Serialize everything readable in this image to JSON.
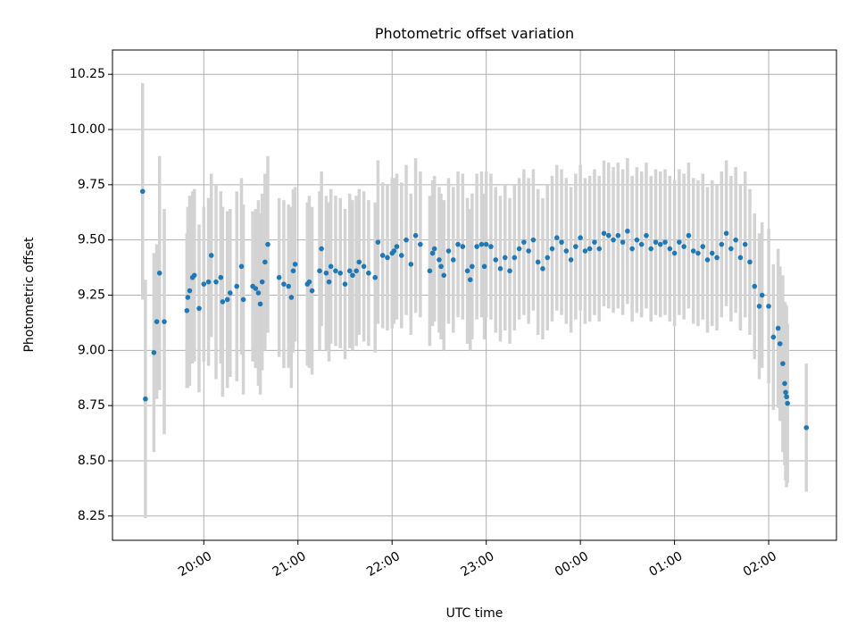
{
  "chart_data": {
    "type": "scatter",
    "title": "Photometric offset variation",
    "xlabel": "UTC time",
    "ylabel": "Photometric offset",
    "grid": true,
    "x_axis": {
      "unit": "hours",
      "range": [
        19.03,
        26.72
      ],
      "ticks": [
        {
          "value": 20,
          "label": "20:00"
        },
        {
          "value": 21,
          "label": "21:00"
        },
        {
          "value": 22,
          "label": "22:00"
        },
        {
          "value": 23,
          "label": "23:00"
        },
        {
          "value": 24,
          "label": "00:00"
        },
        {
          "value": 25,
          "label": "01:00"
        },
        {
          "value": 26,
          "label": "02:00"
        }
      ]
    },
    "y_axis": {
      "range": [
        8.14,
        10.36
      ],
      "ticks": [
        {
          "value": 8.25,
          "label": "8.25"
        },
        {
          "value": 8.5,
          "label": "8.50"
        },
        {
          "value": 8.75,
          "label": "8.75"
        },
        {
          "value": 9.0,
          "label": "9.00"
        },
        {
          "value": 9.25,
          "label": "9.25"
        },
        {
          "value": 9.5,
          "label": "9.50"
        },
        {
          "value": 9.75,
          "label": "9.75"
        },
        {
          "value": 10.0,
          "label": "10.00"
        },
        {
          "value": 10.25,
          "label": "10.25"
        }
      ]
    },
    "colors": {
      "marker": "#1f77b4",
      "errorbar": "#d3d3d3",
      "grid": "#b0b0b0"
    },
    "series": [
      {
        "columns": [
          "x",
          "y",
          "err"
        ],
        "points": [
          [
            19.35,
            9.72,
            0.49
          ],
          [
            19.38,
            8.78,
            0.54
          ],
          [
            19.47,
            8.99,
            0.45
          ],
          [
            19.5,
            9.13,
            0.35
          ],
          [
            19.53,
            9.35,
            0.53
          ],
          [
            19.58,
            9.13,
            0.51
          ],
          [
            19.82,
            9.18,
            0.35
          ],
          [
            19.83,
            9.24,
            0.41
          ],
          [
            19.85,
            9.27,
            0.43
          ],
          [
            19.88,
            9.33,
            0.39
          ],
          [
            19.9,
            9.34,
            0.39
          ],
          [
            19.95,
            9.19,
            0.38
          ],
          [
            20.0,
            9.3,
            0.35
          ],
          [
            20.05,
            9.31,
            0.38
          ],
          [
            20.08,
            9.43,
            0.37
          ],
          [
            20.13,
            9.31,
            0.44
          ],
          [
            20.18,
            9.33,
            0.39
          ],
          [
            20.2,
            9.22,
            0.43
          ],
          [
            20.25,
            9.23,
            0.4
          ],
          [
            20.28,
            9.26,
            0.38
          ],
          [
            20.35,
            9.29,
            0.43
          ],
          [
            20.4,
            9.38,
            0.4
          ],
          [
            20.42,
            9.23,
            0.43
          ],
          [
            20.52,
            9.29,
            0.34
          ],
          [
            20.55,
            9.28,
            0.36
          ],
          [
            20.58,
            9.26,
            0.42
          ],
          [
            20.6,
            9.21,
            0.41
          ],
          [
            20.62,
            9.31,
            0.4
          ],
          [
            20.65,
            9.4,
            0.4
          ],
          [
            20.68,
            9.48,
            0.4
          ],
          [
            20.8,
            9.33,
            0.36
          ],
          [
            20.85,
            9.3,
            0.38
          ],
          [
            20.9,
            9.29,
            0.37
          ],
          [
            20.93,
            9.24,
            0.41
          ],
          [
            20.95,
            9.36,
            0.37
          ],
          [
            20.97,
            9.39,
            0.35
          ],
          [
            21.1,
            9.3,
            0.37
          ],
          [
            21.12,
            9.31,
            0.39
          ],
          [
            21.15,
            9.27,
            0.38
          ],
          [
            21.23,
            9.36,
            0.36
          ],
          [
            21.25,
            9.46,
            0.35
          ],
          [
            21.3,
            9.35,
            0.35
          ],
          [
            21.33,
            9.31,
            0.36
          ],
          [
            21.35,
            9.38,
            0.35
          ],
          [
            21.4,
            9.36,
            0.34
          ],
          [
            21.45,
            9.35,
            0.34
          ],
          [
            21.5,
            9.3,
            0.34
          ],
          [
            21.55,
            9.36,
            0.35
          ],
          [
            21.58,
            9.34,
            0.34
          ],
          [
            21.62,
            9.36,
            0.34
          ],
          [
            21.65,
            9.4,
            0.33
          ],
          [
            21.7,
            9.38,
            0.34
          ],
          [
            21.75,
            9.35,
            0.33
          ],
          [
            21.82,
            9.33,
            0.34
          ],
          [
            21.85,
            9.49,
            0.37
          ],
          [
            21.9,
            9.43,
            0.33
          ],
          [
            21.95,
            9.42,
            0.33
          ],
          [
            22.0,
            9.44,
            0.34
          ],
          [
            22.02,
            9.45,
            0.33
          ],
          [
            22.05,
            9.47,
            0.33
          ],
          [
            22.1,
            9.43,
            0.33
          ],
          [
            22.15,
            9.5,
            0.34
          ],
          [
            22.2,
            9.39,
            0.32
          ],
          [
            22.25,
            9.52,
            0.35
          ],
          [
            22.3,
            9.48,
            0.33
          ],
          [
            22.4,
            9.36,
            0.34
          ],
          [
            22.43,
            9.44,
            0.33
          ],
          [
            22.45,
            9.46,
            0.33
          ],
          [
            22.5,
            9.41,
            0.33
          ],
          [
            22.52,
            9.38,
            0.33
          ],
          [
            22.55,
            9.34,
            0.34
          ],
          [
            22.6,
            9.45,
            0.33
          ],
          [
            22.65,
            9.41,
            0.33
          ],
          [
            22.7,
            9.48,
            0.33
          ],
          [
            22.75,
            9.47,
            0.33
          ],
          [
            22.8,
            9.36,
            0.33
          ],
          [
            22.83,
            9.32,
            0.32
          ],
          [
            22.85,
            9.38,
            0.33
          ],
          [
            22.9,
            9.47,
            0.33
          ],
          [
            22.95,
            9.48,
            0.33
          ],
          [
            22.98,
            9.38,
            0.33
          ],
          [
            23.0,
            9.48,
            0.33
          ],
          [
            23.05,
            9.47,
            0.33
          ],
          [
            23.1,
            9.41,
            0.33
          ],
          [
            23.15,
            9.37,
            0.33
          ],
          [
            23.2,
            9.42,
            0.33
          ],
          [
            23.25,
            9.36,
            0.33
          ],
          [
            23.3,
            9.42,
            0.33
          ],
          [
            23.35,
            9.46,
            0.32
          ],
          [
            23.4,
            9.49,
            0.33
          ],
          [
            23.45,
            9.45,
            0.33
          ],
          [
            23.5,
            9.5,
            0.32
          ],
          [
            23.55,
            9.4,
            0.33
          ],
          [
            23.6,
            9.37,
            0.32
          ],
          [
            23.65,
            9.42,
            0.33
          ],
          [
            23.7,
            9.46,
            0.33
          ],
          [
            23.75,
            9.51,
            0.33
          ],
          [
            23.8,
            9.49,
            0.33
          ],
          [
            23.85,
            9.45,
            0.33
          ],
          [
            23.9,
            9.41,
            0.33
          ],
          [
            23.95,
            9.47,
            0.33
          ],
          [
            24.0,
            9.51,
            0.33
          ],
          [
            24.05,
            9.45,
            0.33
          ],
          [
            24.1,
            9.46,
            0.33
          ],
          [
            24.15,
            9.49,
            0.33
          ],
          [
            24.2,
            9.46,
            0.33
          ],
          [
            24.25,
            9.53,
            0.33
          ],
          [
            24.3,
            9.52,
            0.33
          ],
          [
            24.35,
            9.5,
            0.33
          ],
          [
            24.4,
            9.52,
            0.33
          ],
          [
            24.45,
            9.49,
            0.33
          ],
          [
            24.5,
            9.54,
            0.33
          ],
          [
            24.55,
            9.46,
            0.33
          ],
          [
            24.6,
            9.5,
            0.33
          ],
          [
            24.65,
            9.48,
            0.33
          ],
          [
            24.7,
            9.52,
            0.33
          ],
          [
            24.75,
            9.46,
            0.33
          ],
          [
            24.8,
            9.49,
            0.33
          ],
          [
            24.85,
            9.48,
            0.33
          ],
          [
            24.9,
            9.49,
            0.33
          ],
          [
            24.95,
            9.46,
            0.33
          ],
          [
            25.0,
            9.44,
            0.33
          ],
          [
            25.05,
            9.49,
            0.33
          ],
          [
            25.1,
            9.47,
            0.33
          ],
          [
            25.15,
            9.52,
            0.33
          ],
          [
            25.2,
            9.45,
            0.33
          ],
          [
            25.25,
            9.44,
            0.33
          ],
          [
            25.3,
            9.47,
            0.33
          ],
          [
            25.35,
            9.41,
            0.33
          ],
          [
            25.4,
            9.44,
            0.33
          ],
          [
            25.45,
            9.42,
            0.33
          ],
          [
            25.5,
            9.48,
            0.33
          ],
          [
            25.55,
            9.53,
            0.33
          ],
          [
            25.6,
            9.46,
            0.33
          ],
          [
            25.65,
            9.5,
            0.33
          ],
          [
            25.7,
            9.42,
            0.33
          ],
          [
            25.75,
            9.48,
            0.33
          ],
          [
            25.8,
            9.4,
            0.33
          ],
          [
            25.85,
            9.29,
            0.33
          ],
          [
            25.9,
            9.2,
            0.33
          ],
          [
            25.93,
            9.25,
            0.33
          ],
          [
            26.0,
            9.2,
            0.35
          ],
          [
            26.05,
            9.06,
            0.33
          ],
          [
            26.1,
            9.1,
            0.36
          ],
          [
            26.12,
            9.03,
            0.35
          ],
          [
            26.15,
            8.94,
            0.4
          ],
          [
            26.17,
            8.85,
            0.37
          ],
          [
            26.18,
            8.81,
            0.4
          ],
          [
            26.19,
            8.79,
            0.41
          ],
          [
            26.2,
            8.76,
            0.36
          ],
          [
            26.4,
            8.65,
            0.29
          ]
        ]
      }
    ]
  }
}
